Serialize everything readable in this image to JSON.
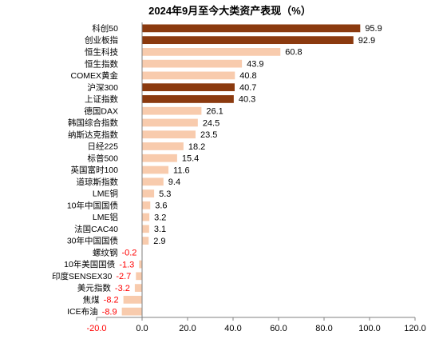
{
  "chart_data": {
    "type": "bar",
    "horizontal": true,
    "title": "2024年9月至今大类资产表现（%）",
    "categories": [
      "科创50",
      "创业板指",
      "恒生科技",
      "恒生指数",
      "COMEX黄金",
      "沪深300",
      "上证指数",
      "德国DAX",
      "韩国综合指数",
      "纳斯达克指数",
      "日经225",
      "标普500",
      "英国富时100",
      "道琼斯指数",
      "LME铜",
      "10年中国国债",
      "LME铝",
      "法国CAC40",
      "30年中国国债",
      "螺纹钢",
      "10年美国国债",
      "印度SENSEX30",
      "美元指数",
      "焦煤",
      "ICE布油"
    ],
    "values": [
      95.9,
      92.9,
      60.8,
      43.9,
      40.8,
      40.7,
      40.3,
      26.1,
      24.5,
      23.5,
      18.2,
      15.4,
      11.6,
      9.4,
      5.3,
      3.6,
      3.2,
      3.1,
      2.9,
      -0.2,
      -1.3,
      -2.7,
      -3.2,
      -8.2,
      -8.9
    ],
    "highlight": [
      true,
      true,
      false,
      false,
      false,
      true,
      true,
      false,
      false,
      false,
      false,
      false,
      false,
      false,
      false,
      false,
      false,
      false,
      false,
      false,
      false,
      false,
      false,
      false,
      false
    ],
    "xlim": [
      -20,
      120
    ],
    "xticks": [
      -20,
      0,
      20,
      40,
      60,
      80,
      100,
      120
    ],
    "xtick_labels": [
      "-20.0",
      "0.0",
      "20.0",
      "40.0",
      "60.0",
      "80.0",
      "100.0",
      "120.0"
    ],
    "grid": false,
    "colors": {
      "highlight_bar": "#8B3A0F",
      "bar": "#F8CBAD",
      "negative_text": "#FF0000",
      "text": "#000000",
      "axis": "#808080"
    }
  }
}
